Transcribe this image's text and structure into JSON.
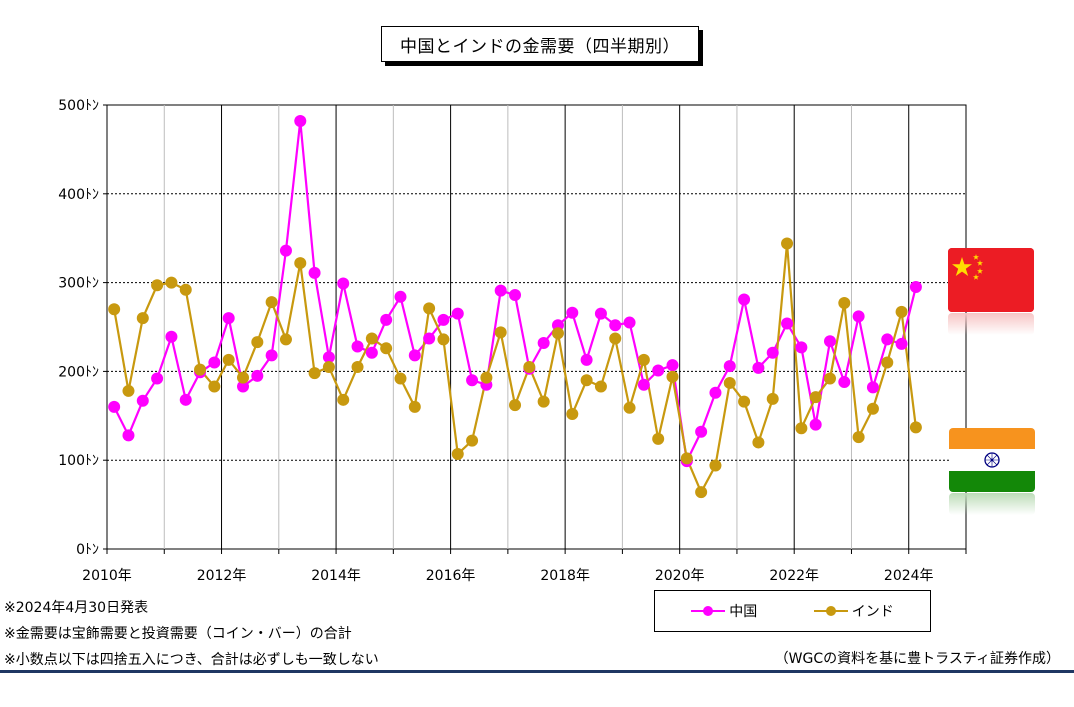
{
  "title": "中国とインドの金需要（四半期別）",
  "legend": {
    "china_label": "中国",
    "india_label": "インド",
    "china_color": "#ff00ff",
    "india_color": "#c8990f"
  },
  "notes": [
    "※2024年4月30日発表",
    "※金需要は宝飾需要と投資需要（コイン・バー）の合計",
    "※小数点以下は四捨五入につき、合計は必ずしも一致しない"
  ],
  "source": "（WGCの資料を基に豊トラスティ証券作成）",
  "flags": {
    "china": "china-flag-icon",
    "india": "india-flag-icon"
  },
  "chart_data": {
    "type": "line",
    "title": "中国とインドの金需要（四半期別）",
    "xlabel": "",
    "ylabel": "",
    "ylim": [
      0,
      500
    ],
    "y_ticks": [
      "0ﾄﾝ",
      "100ﾄﾝ",
      "200ﾄﾝ",
      "300ﾄﾝ",
      "400ﾄﾝ",
      "500ﾄﾝ"
    ],
    "x_ticks": [
      "2010年",
      "2012年",
      "2014年",
      "2016年",
      "2018年",
      "2020年",
      "2022年",
      "2024年"
    ],
    "grid": true,
    "legend_position": "bottom-right",
    "x": [
      "2010Q1",
      "2010Q2",
      "2010Q3",
      "2010Q4",
      "2011Q1",
      "2011Q2",
      "2011Q3",
      "2011Q4",
      "2012Q1",
      "2012Q2",
      "2012Q3",
      "2012Q4",
      "2013Q1",
      "2013Q2",
      "2013Q3",
      "2013Q4",
      "2014Q1",
      "2014Q2",
      "2014Q3",
      "2014Q4",
      "2015Q1",
      "2015Q2",
      "2015Q3",
      "2015Q4",
      "2016Q1",
      "2016Q2",
      "2016Q3",
      "2016Q4",
      "2017Q1",
      "2017Q2",
      "2017Q3",
      "2017Q4",
      "2018Q1",
      "2018Q2",
      "2018Q3",
      "2018Q4",
      "2019Q1",
      "2019Q2",
      "2019Q3",
      "2019Q4",
      "2020Q1",
      "2020Q2",
      "2020Q3",
      "2020Q4",
      "2021Q1",
      "2021Q2",
      "2021Q3",
      "2021Q4",
      "2022Q1",
      "2022Q2",
      "2022Q3",
      "2022Q4",
      "2023Q1",
      "2023Q2",
      "2023Q3",
      "2023Q4",
      "2024Q1"
    ],
    "series": [
      {
        "name": "中国",
        "color": "#ff00ff",
        "values": [
          160,
          128,
          167,
          192,
          239,
          168,
          199,
          210,
          260,
          183,
          195,
          218,
          336,
          482,
          311,
          216,
          299,
          228,
          221,
          258,
          284,
          218,
          237,
          258,
          265,
          190,
          185,
          291,
          286,
          203,
          232,
          252,
          266,
          213,
          265,
          252,
          255,
          185,
          201,
          207,
          99,
          132,
          176,
          206,
          281,
          204,
          221,
          254,
          227,
          140,
          234,
          188,
          262,
          182,
          236,
          231,
          295
        ]
      },
      {
        "name": "インド",
        "color": "#c8990f",
        "values": [
          270,
          178,
          260,
          297,
          300,
          292,
          202,
          183,
          213,
          193,
          233,
          278,
          236,
          322,
          198,
          205,
          168,
          205,
          237,
          226,
          192,
          160,
          271,
          236,
          107,
          122,
          193,
          244,
          162,
          205,
          166,
          243,
          152,
          190,
          183,
          237,
          159,
          213,
          124,
          194,
          102,
          64,
          94,
          187,
          166,
          120,
          169,
          344,
          136,
          171,
          192,
          277,
          126,
          158,
          210,
          267,
          137
        ]
      }
    ]
  }
}
